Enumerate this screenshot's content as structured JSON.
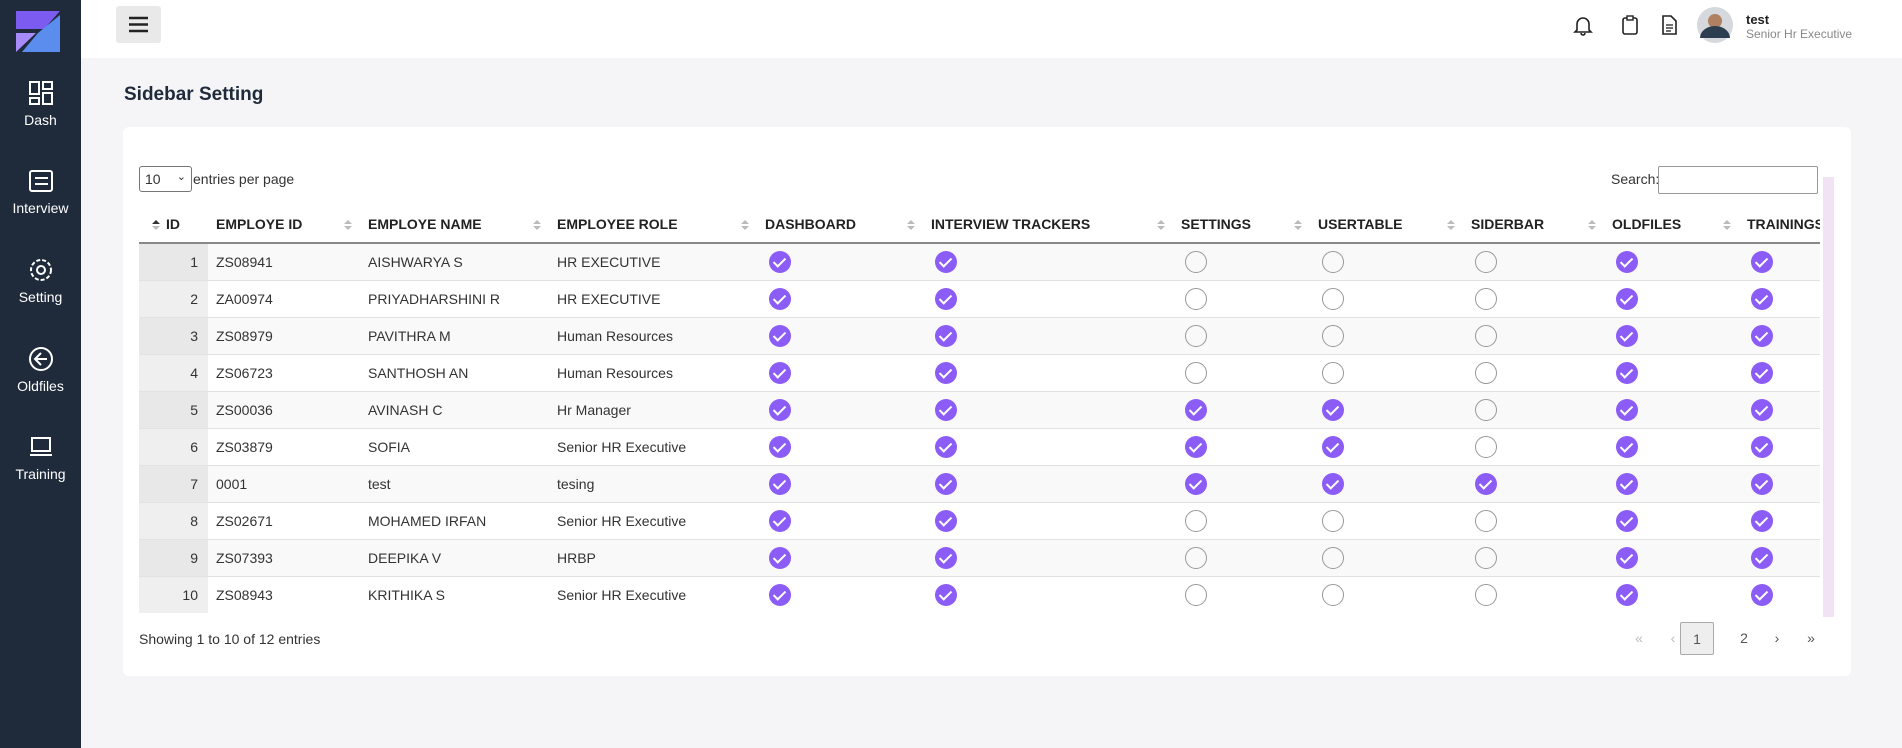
{
  "sidebar": {
    "items": [
      "Dash",
      "Interview",
      "Setting",
      "Oldfiles",
      "Training"
    ]
  },
  "header": {
    "user_name": "test",
    "user_role": "Senior Hr Executive"
  },
  "page_title": "Sidebar Setting",
  "table": {
    "length_value": "10",
    "length_label": "entries per page",
    "search_label": "Search:",
    "columns": [
      "ID",
      "EMPLOYE ID",
      "EMPLOYE NAME",
      "EMPLOYEE ROLE",
      "DASHBOARD",
      "INTERVIEW TRACKERS",
      "SETTINGS",
      "USERTABLE",
      "SIDERBAR",
      "OLDFILES",
      "TRAININGS"
    ],
    "rows": [
      [
        1,
        "ZS08941",
        "AISHWARYA S",
        "HR EXECUTIVE",
        true,
        true,
        false,
        false,
        false,
        true,
        true
      ],
      [
        2,
        "ZA00974",
        "PRIYADHARSHINI R",
        "HR EXECUTIVE",
        true,
        true,
        false,
        false,
        false,
        true,
        true
      ],
      [
        3,
        "ZS08979",
        "PAVITHRA M",
        "Human Resources",
        true,
        true,
        false,
        false,
        false,
        true,
        true
      ],
      [
        4,
        "ZS06723",
        "SANTHOSH AN",
        "Human Resources",
        true,
        true,
        false,
        false,
        false,
        true,
        true
      ],
      [
        5,
        "ZS00036",
        "AVINASH C",
        "Hr Manager",
        true,
        true,
        true,
        true,
        false,
        true,
        true
      ],
      [
        6,
        "ZS03879",
        "SOFIA",
        "Senior HR Executive",
        true,
        true,
        true,
        true,
        false,
        true,
        true
      ],
      [
        7,
        "0001",
        "test",
        "tesing",
        true,
        true,
        true,
        true,
        true,
        true,
        true
      ],
      [
        8,
        "ZS02671",
        "MOHAMED IRFAN",
        "Senior HR Executive",
        true,
        true,
        false,
        false,
        false,
        true,
        true
      ],
      [
        9,
        "ZS07393",
        "DEEPIKA V",
        "HRBP",
        true,
        true,
        false,
        false,
        false,
        true,
        true
      ],
      [
        10,
        "ZS08943",
        "KRITHIKA S",
        "Senior HR Executive",
        true,
        true,
        false,
        false,
        false,
        true,
        true
      ]
    ],
    "info": "Showing 1 to 10 of 12 entries",
    "pagination": [
      "«",
      "‹",
      "1",
      "2",
      "›",
      "»"
    ]
  }
}
